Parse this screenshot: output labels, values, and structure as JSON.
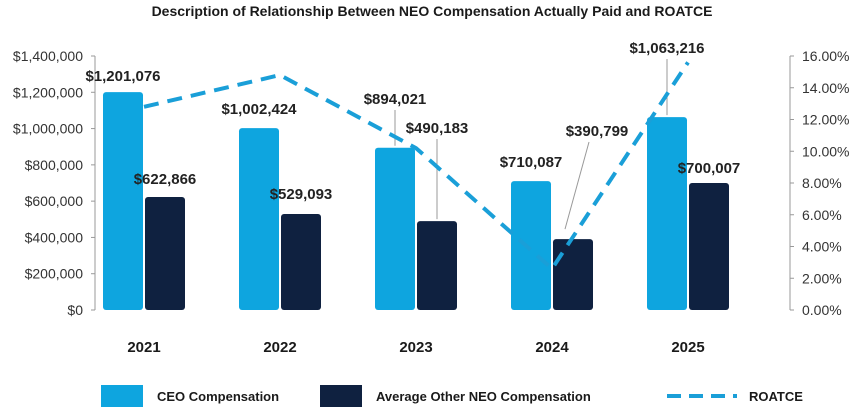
{
  "chart_data": {
    "type": "bar",
    "title": "Description of Relationship Between NEO Compensation Actually Paid and ROATCE",
    "categories": [
      "2021",
      "2022",
      "2023",
      "2024",
      "2025"
    ],
    "series": [
      {
        "name": "CEO Compensation",
        "color": "#0ea5df",
        "values": [
          1201076,
          1002424,
          894021,
          710087,
          1063216
        ],
        "labels": [
          "$1,201,076",
          "$1,002,424",
          "$894,021",
          "$710,087",
          "$1,063,216"
        ]
      },
      {
        "name": "Average Other NEO Compensation",
        "color": "#0f2140",
        "values": [
          622866,
          529093,
          490183,
          390799,
          700007
        ],
        "labels": [
          "$622,866",
          "$529,093",
          "$490,183",
          "$390,799",
          "$700,007"
        ]
      }
    ],
    "line_series": {
      "name": "ROATCE",
      "type": "line",
      "style": "dashed",
      "color": "#1a9fd8",
      "axis": "right",
      "values": [
        12.8,
        14.8,
        10.2,
        2.6,
        15.6
      ],
      "unit": "%"
    },
    "y_left": {
      "lim": [
        0,
        1400000
      ],
      "ticks": [
        0,
        200000,
        400000,
        600000,
        800000,
        1000000,
        1200000,
        1400000
      ],
      "tick_labels": [
        "$0",
        "$200,000",
        "$400,000",
        "$600,000",
        "$800,000",
        "$1,000,000",
        "$1,200,000",
        "$1,400,000"
      ]
    },
    "y_right": {
      "lim": [
        0,
        16
      ],
      "ticks": [
        0,
        2,
        4,
        6,
        8,
        10,
        12,
        14,
        16
      ],
      "tick_labels": [
        "0.00%",
        "2.00%",
        "4.00%",
        "6.00%",
        "8.00%",
        "10.00%",
        "12.00%",
        "14.00%",
        "16.00%"
      ]
    },
    "legend": {
      "position": "bottom",
      "entries": [
        "CEO Compensation",
        "Average Other NEO Compensation",
        "ROATCE"
      ]
    }
  }
}
